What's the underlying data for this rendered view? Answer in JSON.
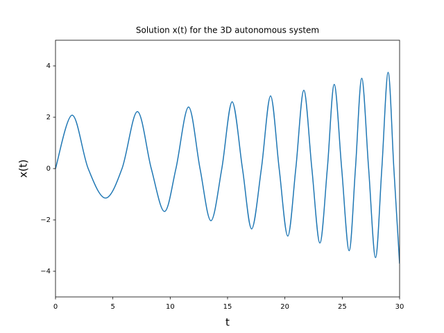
{
  "chart_data": {
    "type": "line",
    "title": "Solution x(t) for the 3D autonomous system",
    "xlabel": "t",
    "ylabel": "x(t)",
    "x": [
      0,
      1.45,
      2.85,
      4.36,
      5.8,
      7.14,
      8.35,
      9.5,
      10.5,
      11.6,
      12.6,
      13.55,
      14.5,
      15.4,
      16.3,
      17.1,
      17.95,
      18.75,
      19.5,
      20.25,
      20.95,
      21.65,
      22.35,
      23.05,
      23.7,
      24.3,
      24.95,
      25.6,
      26.15,
      26.7,
      27.3,
      27.9,
      28.45,
      29.0,
      29.5,
      30
    ],
    "values": [
      0,
      2.08,
      0,
      -1.15,
      0,
      2.22,
      0,
      -1.67,
      0,
      2.4,
      0,
      -2.03,
      0,
      2.6,
      0,
      -2.35,
      0,
      2.83,
      0,
      -2.63,
      0,
      3.05,
      0,
      -2.9,
      0,
      3.28,
      0,
      -3.2,
      0,
      3.52,
      0,
      -3.47,
      0,
      3.75,
      0,
      -3.7
    ],
    "color": "#1f77b4",
    "xlim": [
      0,
      30
    ],
    "xticks": [
      0,
      5,
      10,
      15,
      20,
      25,
      30
    ],
    "ylim": [
      -5,
      5
    ],
    "yticks": [
      {
        "value": -4,
        "label": "−4"
      },
      {
        "value": -2,
        "label": "−2"
      },
      0,
      2,
      4
    ]
  }
}
